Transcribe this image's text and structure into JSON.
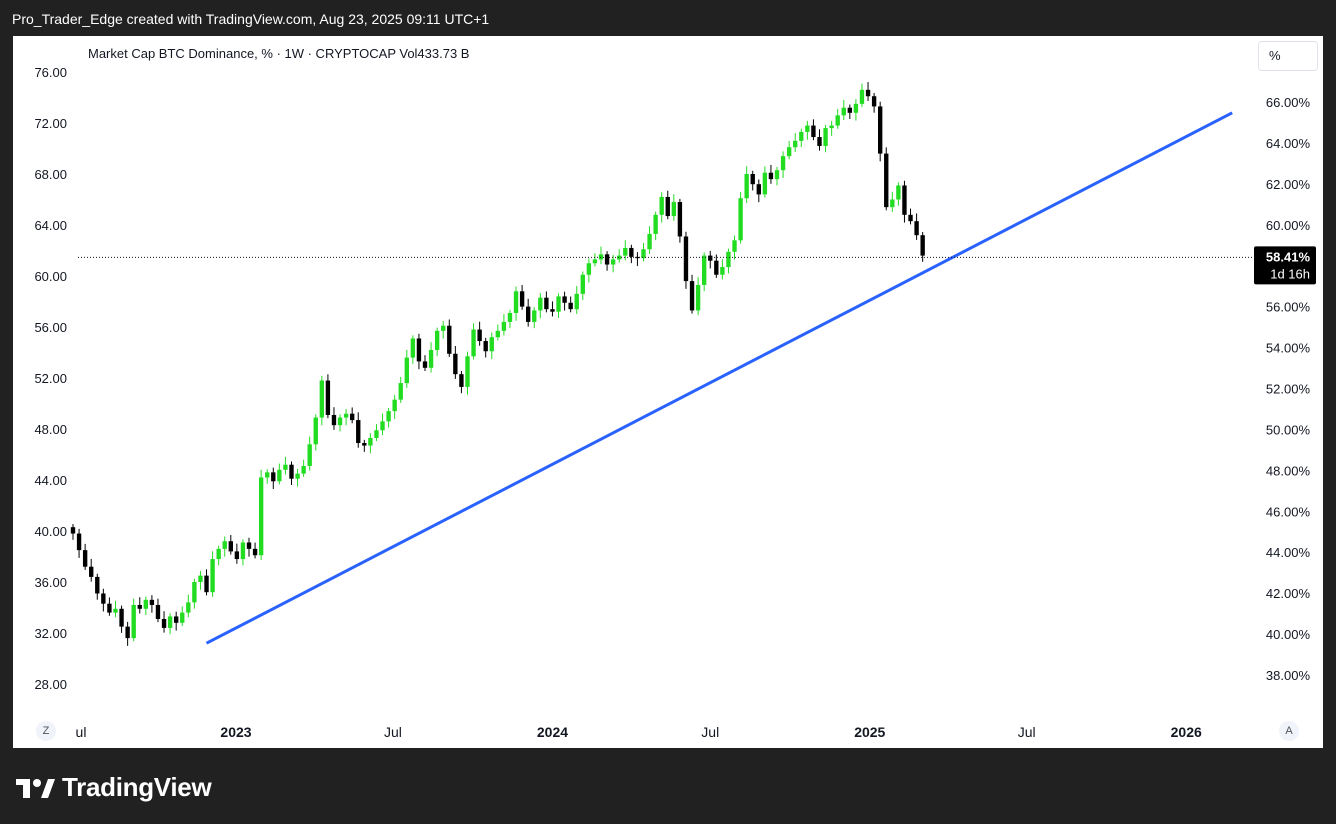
{
  "header": {
    "credit": "Pro_Trader_Edge created with TradingView.com, Aug 23, 2025 09:11 UTC+1"
  },
  "legend": {
    "text": "Market Cap BTC Dominance, % · 1W · CRYPTOCAP  Vol433.73 B"
  },
  "unit_button": {
    "label": "%"
  },
  "corner_buttons": {
    "left": "Z",
    "right": "A"
  },
  "footer": {
    "brand": "TradingView",
    "logo_icon": "tradingview-logo-icon"
  },
  "price_tag": {
    "price": "58.41%",
    "countdown": "1d 16h"
  },
  "colors": {
    "up": "#22dc22",
    "down": "#000000",
    "trendline": "#2962ff",
    "price_tag": "#000000"
  },
  "chart_data": {
    "type": "candlestick",
    "title": "Market Cap BTC Dominance",
    "interval": "1W",
    "source": "CRYPTOCAP",
    "left_axis": {
      "ticks": [
        "76.00",
        "72.00",
        "68.00",
        "64.00",
        "60.00",
        "56.00",
        "52.00",
        "48.00",
        "44.00",
        "40.00",
        "36.00",
        "32.00",
        "28.00"
      ],
      "range": [
        26.0,
        79.0
      ]
    },
    "right_axis": {
      "ticks": [
        "66.00%",
        "64.00%",
        "62.00%",
        "60.00%",
        "58.00%",
        "56.00%",
        "54.00%",
        "52.00%",
        "50.00%",
        "48.00%",
        "46.00%",
        "44.00%",
        "42.00%",
        "40.00%",
        "38.00%"
      ],
      "range": [
        36.9,
        67.8
      ]
    },
    "time_axis": {
      "labels": [
        {
          "label": "ul",
          "bold": false,
          "date": "2022-07"
        },
        {
          "label": "2023",
          "bold": true,
          "date": "2023-01"
        },
        {
          "label": "Jul",
          "bold": false,
          "date": "2023-07"
        },
        {
          "label": "2024",
          "bold": true,
          "date": "2024-01"
        },
        {
          "label": "Jul",
          "bold": false,
          "date": "2024-07"
        },
        {
          "label": "2025",
          "bold": true,
          "date": "2025-01"
        },
        {
          "label": "Jul",
          "bold": false,
          "date": "2025-07"
        },
        {
          "label": "2026",
          "bold": true,
          "date": "2026-01"
        }
      ]
    },
    "first_week": "2022-06-27",
    "series": [
      {
        "name": "Market Cap BTC Dominance",
        "closes": [
          39.8,
          38.5,
          37.2,
          36.4,
          35.1,
          34.3,
          33.6,
          33.9,
          32.5,
          31.6,
          34.2,
          33.9,
          34.6,
          34.2,
          33.1,
          32.4,
          33.3,
          32.8,
          33.6,
          34.4,
          36.0,
          36.5,
          35.2,
          37.8,
          38.6,
          39.2,
          38.4,
          37.8,
          39.1,
          38.6,
          38.1,
          44.2,
          44.6,
          43.9,
          44.8,
          45.2,
          44.1,
          44.5,
          45.1,
          46.8,
          48.9,
          51.8,
          49.1,
          48.3,
          48.9,
          49.2,
          48.7,
          46.9,
          46.7,
          47.3,
          47.9,
          48.6,
          49.4,
          50.3,
          51.6,
          53.6,
          55.1,
          53.3,
          52.8,
          54.2,
          55.7,
          56.1,
          53.9,
          52.3,
          51.3,
          53.7,
          55.8,
          54.9,
          54.1,
          55.2,
          55.7,
          56.4,
          57.1,
          58.8,
          57.6,
          56.4,
          57.3,
          58.3,
          57.4,
          57.2,
          58.4,
          57.9,
          57.4,
          58.6,
          60.1,
          61.0,
          61.3,
          61.7,
          60.9,
          61.3,
          61.6,
          62.2,
          61.5,
          61.4,
          62.1,
          63.3,
          64.8,
          66.2,
          64.7,
          65.8,
          63.1,
          59.6,
          57.3,
          59.3,
          61.6,
          61.2,
          60.1,
          60.7,
          61.9,
          62.8,
          66.1,
          68.0,
          67.2,
          66.4,
          68.1,
          67.6,
          68.3,
          69.4,
          70.1,
          70.6,
          71.3,
          71.8,
          70.9,
          70.2,
          71.6,
          71.8,
          72.6,
          73.2,
          72.8,
          73.5,
          74.6,
          74.1,
          73.3,
          69.6,
          65.4,
          66.0,
          67.1,
          64.8,
          64.3,
          63.2,
          61.6
        ]
      }
    ],
    "trendline": {
      "start": {
        "date": "2022-11-28",
        "value": 31.2
      },
      "end": {
        "date": "2026-02-23",
        "value": 72.8
      }
    },
    "last_price": 58.41
  }
}
